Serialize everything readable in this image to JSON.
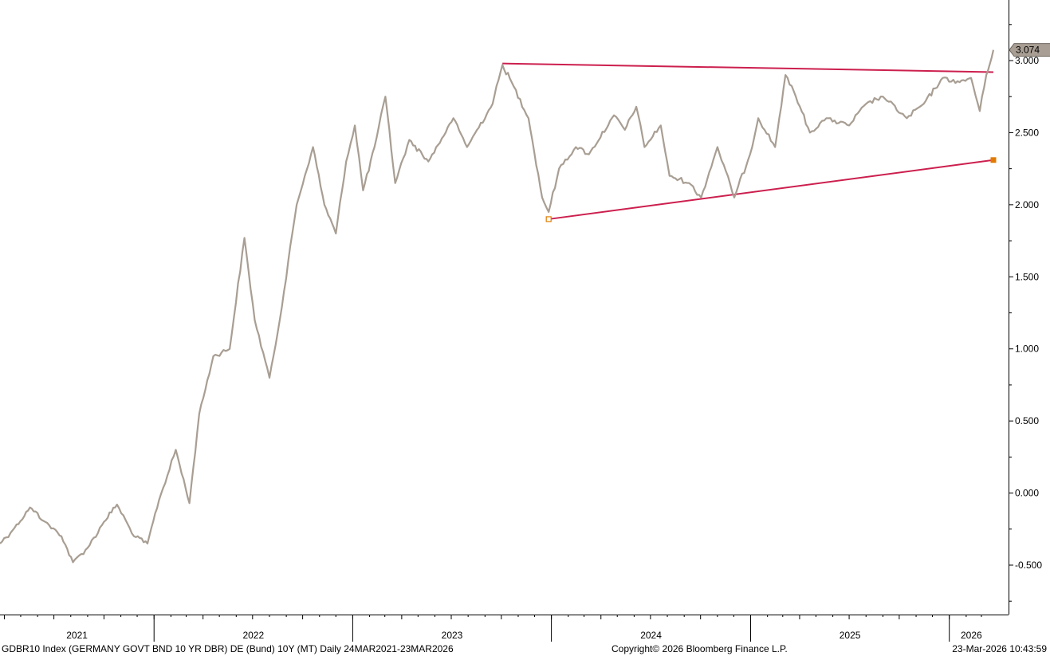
{
  "chart_data": {
    "type": "line",
    "ticker": "GDBR10 Index",
    "series": [
      {
        "color": "#a89e93",
        "points": [
          [
            "2021-03-24",
            -0.35
          ],
          [
            "2021-04-20",
            -0.24
          ],
          [
            "2021-05-18",
            -0.1
          ],
          [
            "2021-06-15",
            -0.2
          ],
          [
            "2021-07-15",
            -0.3
          ],
          [
            "2021-08-05",
            -0.48
          ],
          [
            "2021-09-01",
            -0.38
          ],
          [
            "2021-10-01",
            -0.2
          ],
          [
            "2021-10-25",
            -0.08
          ],
          [
            "2021-11-25",
            -0.3
          ],
          [
            "2021-12-20",
            -0.35
          ],
          [
            "2022-01-10",
            -0.05
          ],
          [
            "2022-02-10",
            0.3
          ],
          [
            "2022-03-07",
            -0.07
          ],
          [
            "2022-03-25",
            0.55
          ],
          [
            "2022-04-20",
            0.95
          ],
          [
            "2022-05-20",
            1.0
          ],
          [
            "2022-06-16",
            1.77
          ],
          [
            "2022-07-05",
            1.2
          ],
          [
            "2022-08-01",
            0.8
          ],
          [
            "2022-08-20",
            1.2
          ],
          [
            "2022-09-20",
            2.0
          ],
          [
            "2022-10-20",
            2.4
          ],
          [
            "2022-11-10",
            2.0
          ],
          [
            "2022-12-01",
            1.8
          ],
          [
            "2022-12-20",
            2.3
          ],
          [
            "2023-01-05",
            2.55
          ],
          [
            "2023-01-20",
            2.1
          ],
          [
            "2023-02-10",
            2.4
          ],
          [
            "2023-03-02",
            2.75
          ],
          [
            "2023-03-20",
            2.15
          ],
          [
            "2023-04-15",
            2.45
          ],
          [
            "2023-05-20",
            2.3
          ],
          [
            "2023-07-05",
            2.6
          ],
          [
            "2023-07-30",
            2.4
          ],
          [
            "2023-09-15",
            2.7
          ],
          [
            "2023-10-03",
            2.97
          ],
          [
            "2023-10-20",
            2.85
          ],
          [
            "2023-11-20",
            2.6
          ],
          [
            "2023-12-15",
            2.05
          ],
          [
            "2023-12-27",
            1.95
          ],
          [
            "2024-01-15",
            2.25
          ],
          [
            "2024-02-15",
            2.4
          ],
          [
            "2024-03-10",
            2.35
          ],
          [
            "2024-04-25",
            2.62
          ],
          [
            "2024-05-15",
            2.52
          ],
          [
            "2024-06-05",
            2.68
          ],
          [
            "2024-06-20",
            2.4
          ],
          [
            "2024-07-20",
            2.55
          ],
          [
            "2024-08-05",
            2.2
          ],
          [
            "2024-09-10",
            2.15
          ],
          [
            "2024-10-02",
            2.05
          ],
          [
            "2024-11-01",
            2.4
          ],
          [
            "2024-12-02",
            2.05
          ],
          [
            "2024-12-31",
            2.35
          ],
          [
            "2025-01-15",
            2.6
          ],
          [
            "2025-02-15",
            2.4
          ],
          [
            "2025-03-06",
            2.9
          ],
          [
            "2025-03-25",
            2.75
          ],
          [
            "2025-04-20",
            2.5
          ],
          [
            "2025-05-20",
            2.6
          ],
          [
            "2025-07-01",
            2.55
          ],
          [
            "2025-08-01",
            2.7
          ],
          [
            "2025-09-01",
            2.75
          ],
          [
            "2025-10-15",
            2.6
          ],
          [
            "2025-11-15",
            2.7
          ],
          [
            "2025-12-20",
            2.88
          ],
          [
            "2026-01-20",
            2.85
          ],
          [
            "2026-02-10",
            2.88
          ],
          [
            "2026-02-26",
            2.65
          ],
          [
            "2026-03-10",
            2.9
          ],
          [
            "2026-03-23",
            3.074
          ]
        ]
      }
    ],
    "trendlines": [
      {
        "color": "#cc1f4e",
        "start": [
          "2023-10-03",
          2.98
        ],
        "end": [
          "2026-03-23",
          2.92
        ]
      },
      {
        "color": "#cc1f4e",
        "start": [
          "2023-12-27",
          1.9
        ],
        "end": [
          "2026-03-23",
          2.31
        ]
      }
    ],
    "last_value_label": "3.074",
    "y_axis": {
      "position": "right",
      "ylim": [
        -0.75,
        3.3
      ],
      "ticks": [
        -0.5,
        0.0,
        0.5,
        1.0,
        1.5,
        2.0,
        2.5,
        3.0
      ],
      "tick_labels": [
        "-0.500",
        "0.000",
        "0.500",
        "1.000",
        "1.500",
        "2.000",
        "2.500",
        "3.000"
      ]
    },
    "x_axis": {
      "start": "2021-03-24",
      "end": "2026-03-23",
      "year_labels": [
        "2021",
        "2022",
        "2023",
        "2024",
        "2025",
        "2026"
      ]
    },
    "grid": false
  },
  "footer": {
    "left": "GDBR10 Index (GERMANY GOVT BND 10 YR DBR) DE (Bund) 10Y (MT) Daily 24MAR2021-23MAR2026",
    "center": "Copyright© 2026 Bloomberg Finance L.P.",
    "right": "23-Mar-2026 10:43:59"
  }
}
